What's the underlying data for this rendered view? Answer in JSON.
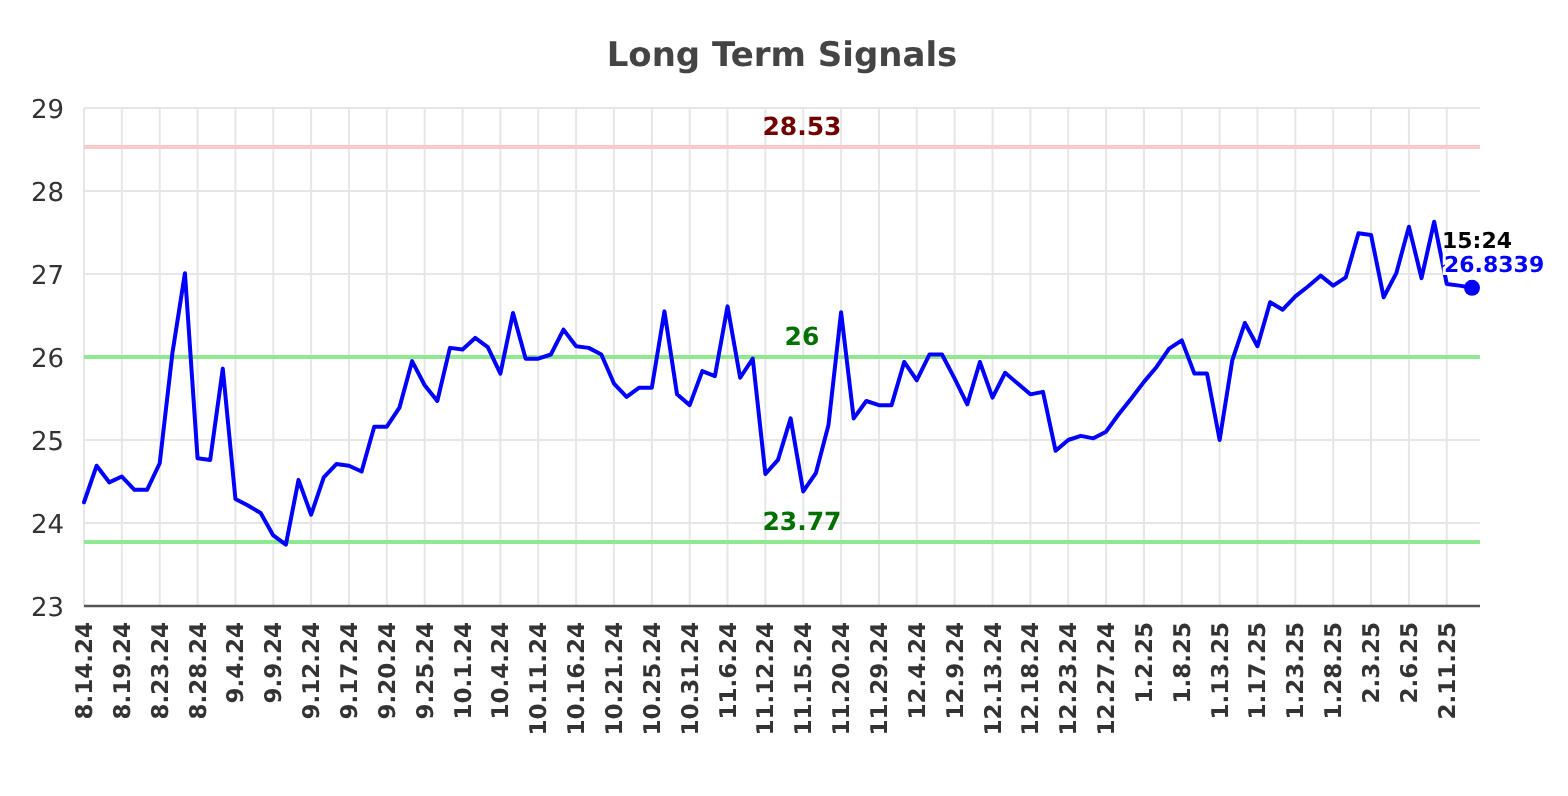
{
  "chart_data": {
    "type": "line",
    "title": "Long Term Signals",
    "categories": [
      "8.14.24",
      null,
      null,
      "8.19.24",
      null,
      null,
      "8.23.24",
      null,
      null,
      "8.28.24",
      null,
      null,
      "9.4.24",
      null,
      null,
      "9.9.24",
      null,
      null,
      "9.12.24",
      null,
      null,
      "9.17.24",
      null,
      null,
      "9.20.24",
      null,
      null,
      "9.25.24",
      null,
      null,
      "10.1.24",
      null,
      null,
      "10.4.24",
      null,
      null,
      "10.11.24",
      null,
      null,
      "10.16.24",
      null,
      null,
      "10.21.24",
      null,
      null,
      "10.25.24",
      null,
      null,
      "10.31.24",
      null,
      null,
      "11.6.24",
      null,
      null,
      "11.12.24",
      null,
      null,
      "11.15.24",
      null,
      null,
      "11.20.24",
      null,
      null,
      "11.29.24",
      null,
      null,
      "12.4.24",
      null,
      null,
      "12.9.24",
      null,
      null,
      "12.13.24",
      null,
      null,
      "12.18.24",
      null,
      null,
      "12.23.24",
      null,
      null,
      "12.27.24",
      null,
      null,
      "1.2.25",
      null,
      null,
      "1.8.25",
      null,
      null,
      "1.13.25",
      null,
      null,
      "1.17.25",
      null,
      null,
      "1.23.25",
      null,
      null,
      "1.28.25",
      null,
      null,
      "2.3.25",
      null,
      null,
      "2.6.25",
      null,
      null,
      "2.11.25",
      null,
      null
    ],
    "series": [
      {
        "color": "#0000ff",
        "values": [
          24.25,
          24.69,
          24.49,
          24.56,
          24.4,
          24.4,
          24.72,
          26.04,
          27.01,
          24.78,
          24.76,
          25.86,
          24.29,
          24.21,
          24.12,
          23.85,
          23.74,
          24.52,
          24.1,
          24.55,
          24.71,
          24.69,
          24.62,
          25.16,
          25.16,
          25.39,
          25.95,
          25.66,
          25.47,
          26.11,
          26.09,
          26.23,
          26.12,
          25.8,
          26.53,
          25.98,
          25.98,
          26.03,
          26.33,
          26.13,
          26.11,
          26.03,
          25.68,
          25.52,
          25.63,
          25.63,
          26.55,
          25.55,
          25.42,
          25.83,
          25.77,
          26.61,
          25.75,
          25.98,
          24.59,
          24.76,
          25.26,
          24.38,
          24.6,
          25.18,
          26.54,
          25.26,
          25.47,
          25.42,
          25.42,
          25.94,
          25.72,
          26.03,
          26.03,
          25.74,
          25.43,
          25.94,
          25.51,
          25.81,
          25.68,
          25.55,
          25.58,
          24.87,
          25.0,
          25.05,
          25.02,
          25.1,
          25.31,
          25.5,
          25.7,
          25.88,
          26.1,
          26.2,
          25.8,
          25.8,
          25.0,
          25.96,
          26.41,
          26.13,
          26.66,
          26.57,
          26.73,
          26.85,
          26.98,
          26.86,
          26.96,
          27.49,
          27.47,
          26.72,
          27.01,
          27.57,
          26.95,
          27.63,
          26.88,
          26.86,
          26.8339
        ]
      }
    ],
    "ylim": [
      23,
      29
    ],
    "yticks": [
      23,
      24,
      25,
      26,
      27,
      28,
      29
    ],
    "grid": true,
    "marker": "none",
    "ref_lines": [
      {
        "axis": "y",
        "value": 28.53,
        "label": "28.53",
        "color": "#ffc8c8"
      },
      {
        "axis": "y",
        "value": 26,
        "label": "26",
        "color": "#90e890"
      },
      {
        "axis": "y",
        "value": 23.77,
        "label": "23.77",
        "color": "#90e890"
      }
    ],
    "annotations": [
      "15:24",
      "26.8339"
    ]
  }
}
